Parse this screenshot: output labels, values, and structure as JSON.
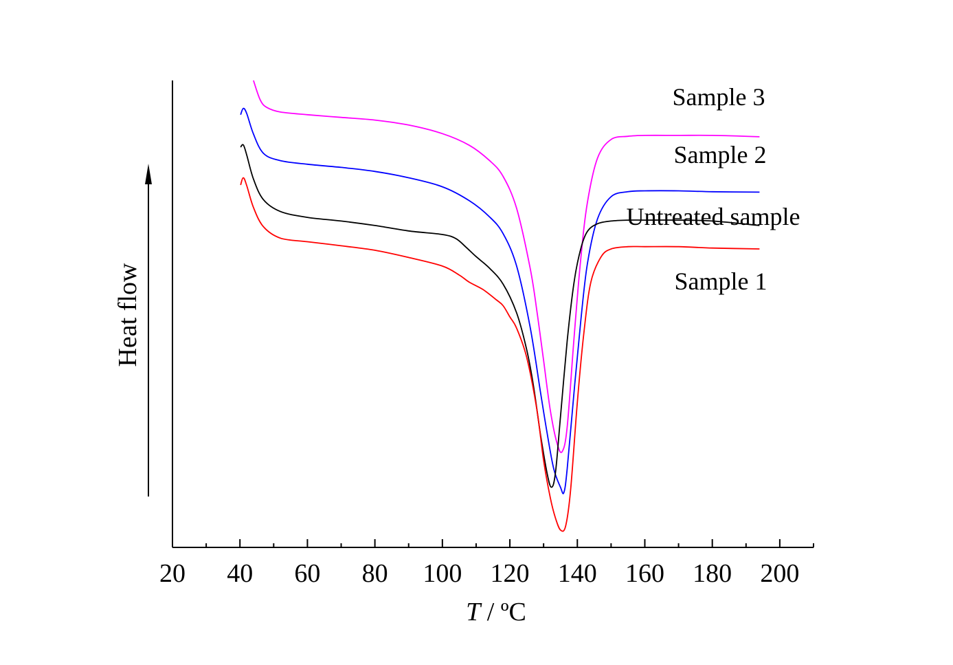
{
  "chart_data": {
    "type": "line",
    "title": "",
    "xlabel_var": "T",
    "xlabel_unit": " / ºC",
    "ylabel": "Heat flow",
    "xlim": [
      20,
      210
    ],
    "ylim": [
      0,
      100
    ],
    "xticks": [
      20,
      40,
      60,
      80,
      100,
      120,
      140,
      160,
      180,
      200
    ],
    "y_ticks_shown": false,
    "y_axis_arrow": true,
    "grid": false,
    "legend": "inline labels at right end of curves",
    "series": [
      {
        "name": "Sample 3",
        "color": "#ff00ff",
        "x": [
          44,
          46,
          48,
          52,
          60,
          70,
          80,
          90,
          100,
          108,
          114,
          118,
          122,
          126,
          128,
          130,
          132,
          134,
          135.5,
          137,
          139,
          141,
          143,
          146,
          150,
          155,
          160,
          170,
          180,
          194
        ],
        "y": [
          100,
          95.7,
          94.0,
          93.0,
          92.4,
          91.8,
          91.2,
          90.1,
          88.2,
          85.6,
          82.2,
          78.7,
          71.6,
          58.4,
          48.9,
          37.8,
          26.7,
          19.4,
          17.6,
          23.1,
          42.7,
          60.3,
          73.0,
          82.8,
          86.9,
          87.6,
          87.8,
          87.8,
          87.8,
          87.5
        ]
      },
      {
        "name": "Sample 2",
        "color": "#0000ff",
        "x": [
          40.2,
          41,
          42,
          44,
          47,
          52,
          60,
          70,
          80,
          90,
          100,
          108,
          114,
          118,
          122,
          126,
          129,
          131,
          133,
          135,
          136,
          137,
          139,
          141,
          143,
          146,
          150,
          155,
          160,
          170,
          180,
          194
        ],
        "y": [
          92.4,
          93.8,
          92.7,
          88.1,
          83.8,
          82.2,
          81.4,
          80.7,
          79.8,
          78.4,
          76.4,
          73.3,
          69.7,
          66.0,
          58.8,
          45.3,
          31.2,
          21.9,
          13.8,
          9.7,
          8.5,
          13.8,
          30.7,
          46.5,
          59.4,
          69.3,
          74.2,
          75.3,
          75.5,
          75.5,
          75.3,
          75.2
        ]
      },
      {
        "name": "Untreated sample",
        "color": "#000000",
        "x": [
          40.2,
          41,
          42,
          44,
          47,
          52,
          60,
          70,
          80,
          90,
          100,
          104,
          107,
          110,
          114,
          118,
          122,
          125,
          127,
          129,
          131,
          132.3,
          133.5,
          135,
          137,
          139,
          141,
          143,
          146,
          150,
          155,
          160,
          170,
          180,
          194
        ],
        "y": [
          85.2,
          85.7,
          83.5,
          78.1,
          73.5,
          70.9,
          69.6,
          68.8,
          67.8,
          66.6,
          65.8,
          64.9,
          63.0,
          60.9,
          58.3,
          54.8,
          48.4,
          40.2,
          32.2,
          21.8,
          12.9,
          9.7,
          12.8,
          25.3,
          42.2,
          55.1,
          62.6,
          66.5,
          68.2,
          68.8,
          69.0,
          69.0,
          69.0,
          68.8,
          67.8
        ]
      },
      {
        "name": "Sample 1",
        "color": "#ff0000",
        "x": [
          40.2,
          41,
          42,
          44,
          47,
          52,
          60,
          70,
          80,
          90,
          100,
          105,
          108,
          112,
          116,
          118,
          120,
          122,
          125,
          128,
          130,
          132,
          133.5,
          135,
          136.5,
          138,
          140,
          142,
          144,
          147,
          150,
          155,
          160,
          170,
          180,
          194
        ],
        "y": [
          76.8,
          78.4,
          76.7,
          71.8,
          67.5,
          65.0,
          64.2,
          63.3,
          62.3,
          60.7,
          58.8,
          56.8,
          55.2,
          53.6,
          51.3,
          50.0,
          47.5,
          45.0,
          38.5,
          27.0,
          15.6,
          7.3,
          2.9,
          0.2,
          1.0,
          9.0,
          28.6,
          44.4,
          55.2,
          60.8,
          62.6,
          63.1,
          63.1,
          63.1,
          62.8,
          62.6
        ]
      }
    ]
  }
}
